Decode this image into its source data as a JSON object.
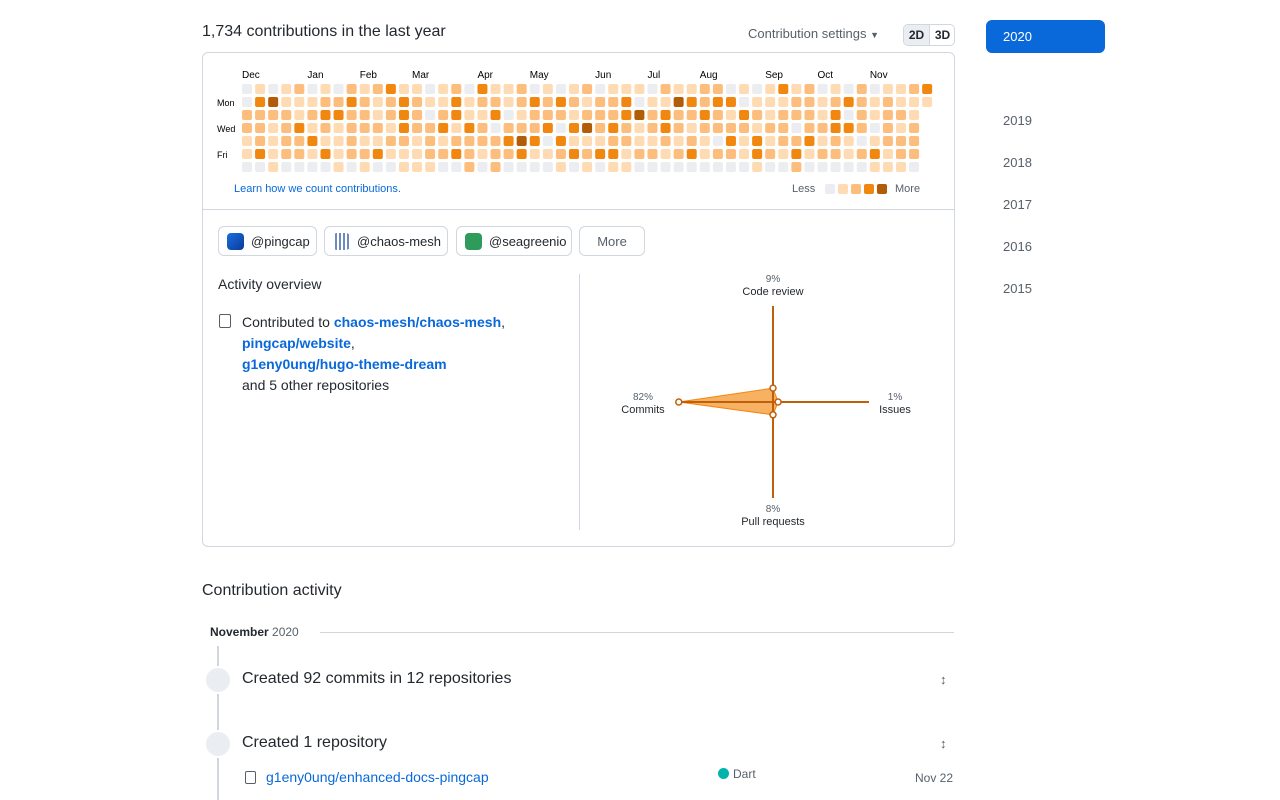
{
  "header": {
    "title": "1,734 contributions in the last year",
    "settings": "Contribution settings",
    "view_2d": "2D",
    "view_3d": "3D"
  },
  "calendar": {
    "weeks": [
      "Dec",
      null,
      null,
      null,
      null,
      "Jan",
      null,
      null,
      null,
      "Feb",
      null,
      null,
      null,
      "Mar",
      null,
      null,
      null,
      null,
      "Apr",
      null,
      null,
      null,
      "May",
      null,
      null,
      null,
      null,
      "Jun",
      null,
      null,
      null,
      "Jul",
      null,
      null,
      null,
      "Aug",
      null,
      null,
      null,
      null,
      "Sep",
      null,
      null,
      null,
      "Oct",
      null,
      null,
      null,
      "Nov",
      null,
      null,
      null,
      null
    ],
    "days": [
      null,
      "Mon",
      null,
      "Wed",
      null,
      "Fri",
      null
    ],
    "levels": [
      "01012010212311012031120101201110211220101312010201123",
      "03411122321232113122123232122301143233011122123212111",
      "2222123322123202311301222122234232232132122213021221-",
      "2212312122213223132022230342321232122221220223320212-",
      "1212231121122121222234303111221121210313122312101222-",
      "1312213122311122321223112323312212312213213122123122-",
      "0010000101001110020200001010110000000001002000001110-"
    ],
    "colors": [
      "#ebedf0",
      "#ffdbb3",
      "#fdbd7c",
      "#f2870f",
      "#b35c07"
    ],
    "learn": "Learn how we count contributions.",
    "less": "Less",
    "more": "More"
  },
  "orgs": [
    "@pingcap",
    "@chaos-mesh",
    "@seagreenio"
  ],
  "orgs_more": "More",
  "overview": {
    "title": "Activity overview",
    "prefix": "Contributed to",
    "repos": [
      "chaos-mesh/chaos-mesh",
      "pingcap/website",
      "g1eny0ung/hugo-theme-dream"
    ],
    "separator": ",",
    "suffix": "and 5 other repositories"
  },
  "chart_data": {
    "type": "radar",
    "axes": [
      "Code review",
      "Issues",
      "Pull requests",
      "Commits"
    ],
    "values": [
      9,
      1,
      8,
      82
    ],
    "value_labels": [
      "9%",
      "1%",
      "8%",
      "82%"
    ],
    "color": "#f2870f"
  },
  "years": [
    "2020",
    "2019",
    "2018",
    "2017",
    "2016",
    "2015"
  ],
  "activity": {
    "title": "Contribution activity",
    "month": "November",
    "year": "2020",
    "items": [
      "Created 92 commits in 12 repositories",
      "Created 1 repository"
    ],
    "repo": {
      "name": "g1eny0ung/enhanced-docs-pingcap",
      "language": "Dart",
      "date": "Nov 22"
    }
  }
}
